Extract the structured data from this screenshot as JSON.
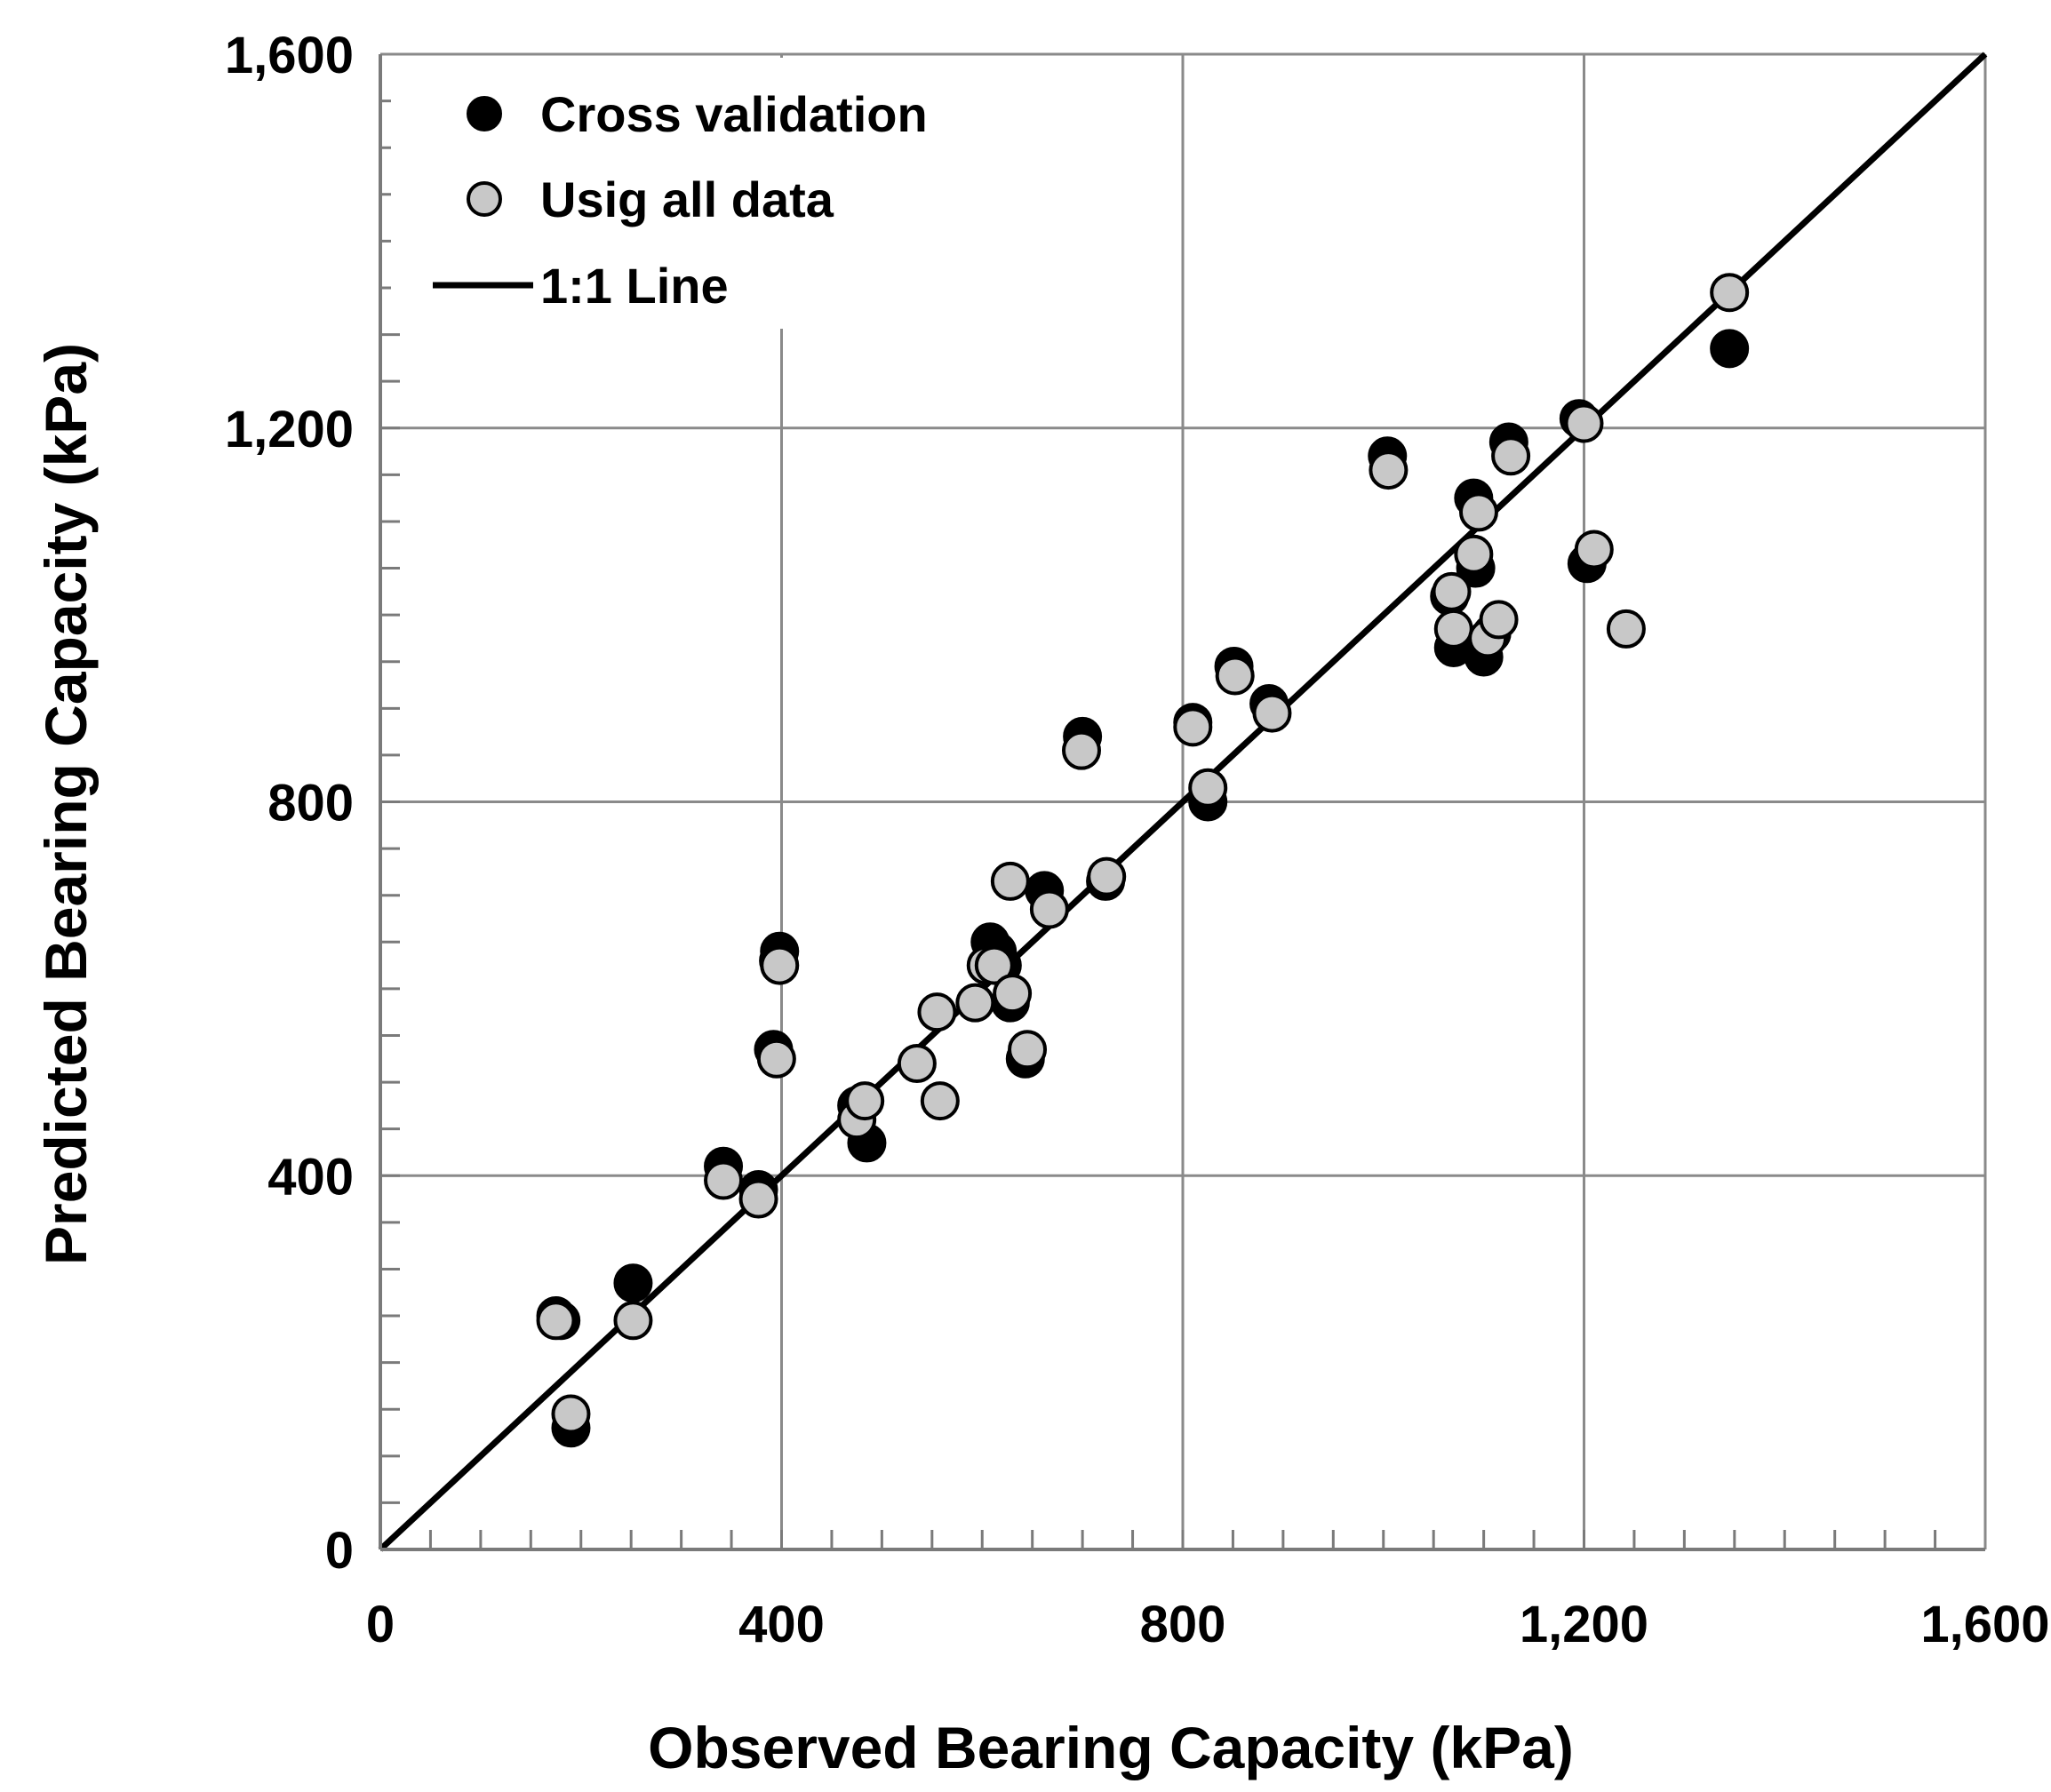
{
  "chart_data": {
    "type": "scatter",
    "title": "",
    "xlabel": "Observed Bearing Capacity (kPa)",
    "ylabel": "Predicted Bearing Capacity (kPa)",
    "xlim": [
      0,
      1600
    ],
    "ylim": [
      0,
      1600
    ],
    "xticks": [
      0,
      400,
      800,
      1200,
      1600
    ],
    "yticks": [
      0,
      400,
      800,
      1200,
      1600
    ],
    "xtick_labels": [
      "0",
      "400",
      "800",
      "1,200",
      "1,600"
    ],
    "ytick_labels": [
      "0",
      "400",
      "800",
      "1,200",
      "1,600"
    ],
    "minor_tick_step": 50,
    "grid": true,
    "legend_position": "top-left",
    "series": [
      {
        "name": "Cross validation",
        "marker": "filled-circle",
        "color": "#000000",
        "points": [
          [
            175,
            250
          ],
          [
            180,
            245
          ],
          [
            190,
            130
          ],
          [
            252,
            285
          ],
          [
            342,
            410
          ],
          [
            377,
            385
          ],
          [
            392,
            535
          ],
          [
            398,
            640
          ],
          [
            397,
            630
          ],
          [
            475,
            475
          ],
          [
            485,
            435
          ],
          [
            608,
            650
          ],
          [
            615,
            640
          ],
          [
            620,
            625
          ],
          [
            628,
            585
          ],
          [
            643,
            525
          ],
          [
            662,
            705
          ],
          [
            700,
            870
          ],
          [
            723,
            715
          ],
          [
            810,
            885
          ],
          [
            825,
            800
          ],
          [
            851,
            945
          ],
          [
            886,
            905
          ],
          [
            1004,
            1170
          ],
          [
            1066,
            1020
          ],
          [
            1070,
            965
          ],
          [
            1090,
            1125
          ],
          [
            1092,
            1050
          ],
          [
            1100,
            955
          ],
          [
            1108,
            980
          ],
          [
            1125,
            1185
          ],
          [
            1195,
            1210
          ],
          [
            1203,
            1055
          ],
          [
            1345,
            1285
          ]
        ]
      },
      {
        "name": "Usig all data",
        "marker": "gray-circle",
        "color": "#c8c8c8",
        "points": [
          [
            175,
            245
          ],
          [
            190,
            145
          ],
          [
            252,
            245
          ],
          [
            342,
            395
          ],
          [
            377,
            375
          ],
          [
            395,
            525
          ],
          [
            398,
            625
          ],
          [
            475,
            460
          ],
          [
            483,
            480
          ],
          [
            535,
            520
          ],
          [
            555,
            575
          ],
          [
            558,
            480
          ],
          [
            593,
            585
          ],
          [
            604,
            625
          ],
          [
            612,
            625
          ],
          [
            628,
            715
          ],
          [
            630,
            595
          ],
          [
            645,
            535
          ],
          [
            667,
            685
          ],
          [
            699,
            855
          ],
          [
            724,
            720
          ],
          [
            810,
            880
          ],
          [
            825,
            815
          ],
          [
            852,
            935
          ],
          [
            889,
            895
          ],
          [
            1005,
            1155
          ],
          [
            1068,
            1025
          ],
          [
            1070,
            985
          ],
          [
            1090,
            1065
          ],
          [
            1095,
            1110
          ],
          [
            1104,
            975
          ],
          [
            1115,
            995
          ],
          [
            1127,
            1170
          ],
          [
            1200,
            1205
          ],
          [
            1210,
            1070
          ],
          [
            1242,
            985
          ],
          [
            1345,
            1345
          ]
        ]
      },
      {
        "name": "1:1 Line",
        "marker": "line",
        "color": "#000000",
        "points": [
          [
            0,
            0
          ],
          [
            1600,
            1600
          ]
        ]
      }
    ]
  },
  "legend": {
    "cross_validation": "Cross validation",
    "all_data": "Usig all data",
    "one_to_one": "1:1 Line"
  }
}
